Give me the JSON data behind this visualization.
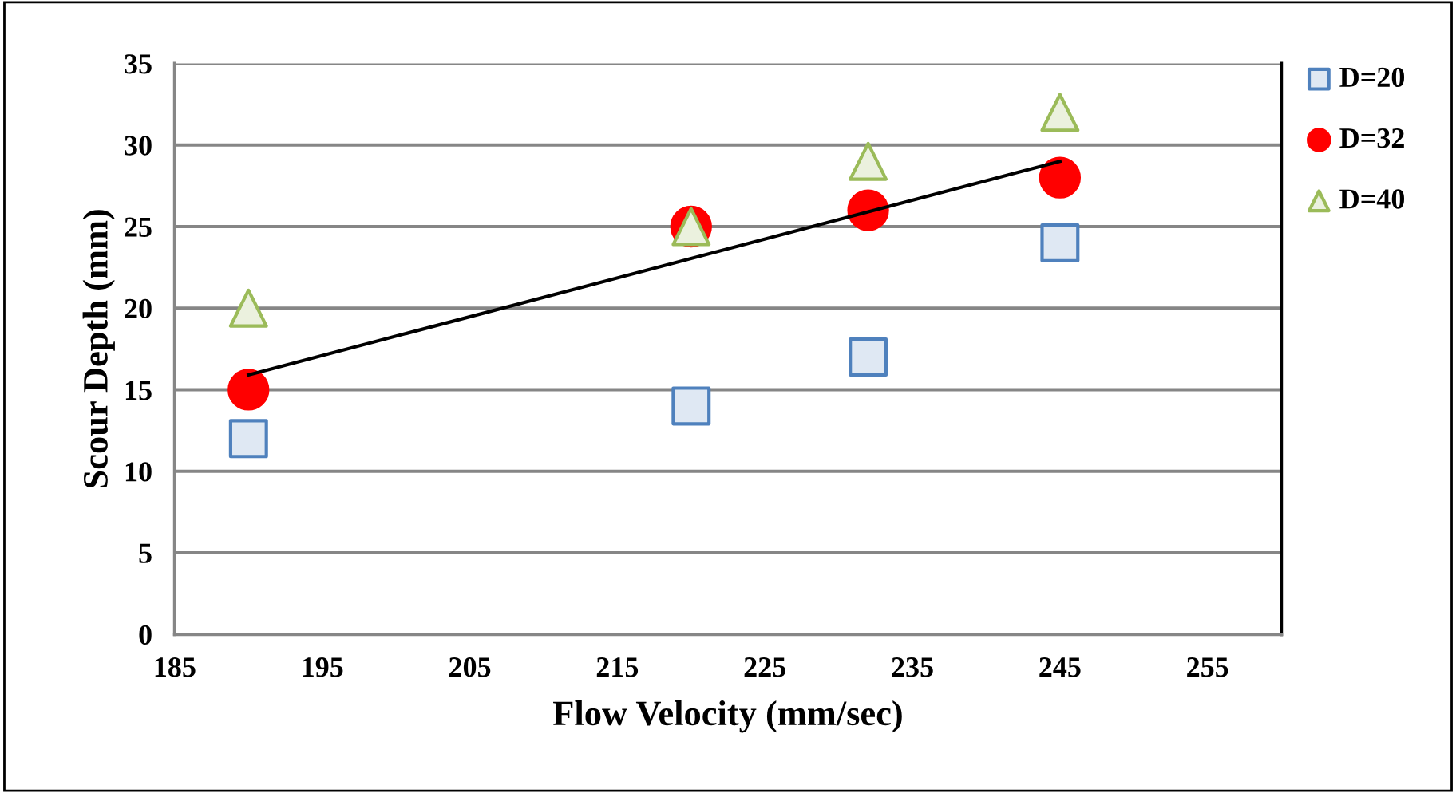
{
  "chart_data": {
    "type": "scatter",
    "xlabel": "Flow Velocity (mm/sec)",
    "ylabel": "Scour Depth (mm)",
    "x": [
      190,
      220,
      232,
      245
    ],
    "series": [
      {
        "name": "D=20",
        "color": "#4f81bd",
        "marker": "square",
        "values": [
          12,
          14,
          17,
          24
        ]
      },
      {
        "name": "D=32",
        "color": "#ff0000",
        "marker": "circle",
        "values": [
          15,
          25,
          26,
          28
        ]
      },
      {
        "name": "D=40",
        "color": "#9bbb59",
        "marker": "triangle",
        "values": [
          20,
          25,
          29,
          32
        ]
      },
      {
        "type": "line",
        "color": "#000000",
        "marker": "none",
        "x": [
          190,
          245
        ],
        "values": [
          15.9,
          29
        ]
      }
    ],
    "xlim": [
      185,
      260
    ],
    "xticks": [
      185,
      195,
      205,
      215,
      225,
      235,
      245,
      255
    ],
    "ylim": [
      0,
      35
    ],
    "yticks": [
      0,
      5,
      10,
      15,
      20,
      25,
      30,
      35
    ],
    "grid": "y",
    "legend": "right"
  }
}
